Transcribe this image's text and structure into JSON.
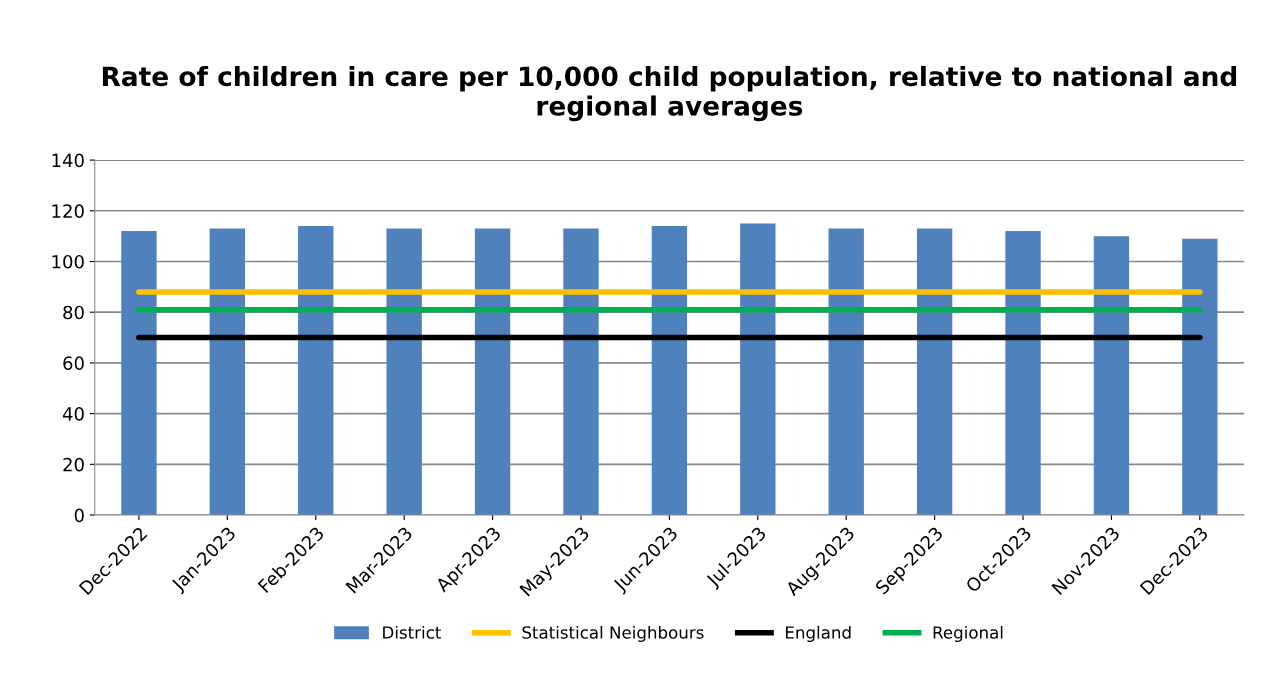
{
  "chart_data": {
    "type": "bar",
    "title": "Rate of children in care per 10,000 child population, relative to national and regional averages",
    "categories": [
      "Dec-2022",
      "Jan-2023",
      "Feb-2023",
      "Mar-2023",
      "Apr-2023",
      "May-2023",
      "Jun-2023",
      "Jul-2023",
      "Aug-2023",
      "Sep-2023",
      "Oct-2023",
      "Nov-2023",
      "Dec-2023"
    ],
    "series": [
      {
        "name": "District",
        "color": "#4f81bd",
        "values": [
          112,
          113,
          114,
          113,
          113,
          113,
          114,
          115,
          113,
          113,
          112,
          110,
          109
        ]
      },
      {
        "name": "Statistical Neighbours",
        "type": "line",
        "color": "#ffc000",
        "values": [
          88,
          88,
          88,
          88,
          88,
          88,
          88,
          88,
          88,
          88,
          88,
          88,
          88
        ]
      },
      {
        "name": "England",
        "type": "line",
        "color": "#000000",
        "values": [
          70,
          70,
          70,
          70,
          70,
          70,
          70,
          70,
          70,
          70,
          70,
          70,
          70
        ]
      },
      {
        "name": "Regional",
        "type": "line",
        "color": "#00b050",
        "values": [
          81,
          81,
          81,
          81,
          81,
          81,
          81,
          81,
          81,
          81,
          81,
          81,
          81
        ]
      }
    ],
    "ylim": [
      0,
      140
    ],
    "yticks": [
      0,
      20,
      40,
      60,
      80,
      100,
      120,
      140
    ],
    "grid": "y",
    "legend": "bottom",
    "marker": "none",
    "line_style": "solid"
  }
}
